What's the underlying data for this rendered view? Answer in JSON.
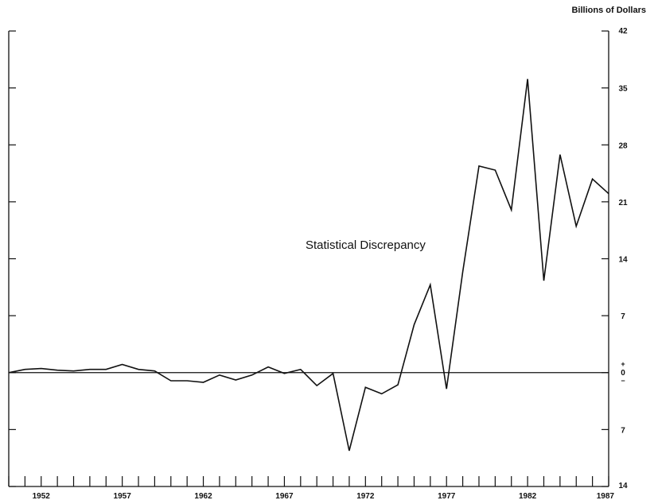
{
  "chart_data": {
    "type": "line",
    "title": "",
    "xlabel": "",
    "ylabel": "Billions of Dollars",
    "annotation": "Statistical Discrepancy",
    "x_tick_labels": [
      "1952",
      "1957",
      "1962",
      "1967",
      "1972",
      "1977",
      "1982",
      "1987"
    ],
    "x_tick_values": [
      1952,
      1957,
      1962,
      1967,
      1972,
      1977,
      1982,
      1987
    ],
    "xlim": [
      1950,
      1987
    ],
    "y_tick_labels": [
      "42",
      "35",
      "28",
      "21",
      "14",
      "7",
      "0",
      "7",
      "14"
    ],
    "y_tick_values": [
      42,
      35,
      28,
      21,
      14,
      7,
      0,
      -7,
      -14
    ],
    "ylim": [
      -14,
      42
    ],
    "zero_signs": {
      "plus": "+",
      "minus": "−"
    },
    "y_axis_side": "right",
    "grid": false,
    "series": [
      {
        "x": [
          1950,
          1951,
          1952,
          1953,
          1954,
          1955,
          1956,
          1957,
          1958,
          1959,
          1960,
          1961,
          1962,
          1963,
          1964,
          1965,
          1966,
          1967,
          1968,
          1969,
          1970,
          1971,
          1972,
          1973,
          1974,
          1975,
          1976,
          1977,
          1978,
          1979,
          1980,
          1981,
          1982,
          1983,
          1984,
          1985,
          1986,
          1987
        ],
        "values": [
          0.0,
          0.4,
          0.5,
          0.3,
          0.2,
          0.4,
          0.4,
          1.0,
          0.4,
          0.2,
          -1.0,
          -1.0,
          -1.2,
          -0.3,
          -0.9,
          -0.3,
          0.7,
          -0.1,
          0.4,
          -1.6,
          -0.1,
          -9.6,
          -1.8,
          -2.6,
          -1.5,
          5.9,
          10.8,
          -2.0,
          12.4,
          25.4,
          24.9,
          20.0,
          36.1,
          11.3,
          26.8,
          18.0,
          23.8,
          22.0
        ]
      }
    ]
  }
}
